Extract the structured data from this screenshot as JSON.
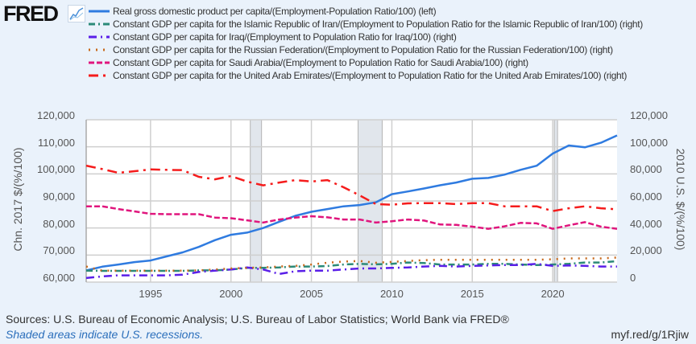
{
  "logo": {
    "text": "FRED"
  },
  "footer": {
    "sources": "Sources: U.S. Bureau of Economic Analysis; U.S. Bureau of Labor Statistics; World Bank via FRED®",
    "recession_note": "Shaded areas indicate U.S. recessions.",
    "link": "myf.red/g/1Rjiw"
  },
  "chart_data": {
    "type": "line",
    "title": "",
    "xlabel": "",
    "ylabel_left": "Chn. 2017 $/(%/100)",
    "ylabel_right": "2010 U.S. $/(%/100)",
    "xlim": [
      1991,
      2024
    ],
    "ylim_left": [
      60000,
      120000
    ],
    "ylim_right": [
      0,
      120000
    ],
    "x_ticks": [
      "1995",
      "2000",
      "2005",
      "2010",
      "2015",
      "2020"
    ],
    "y_ticks_left": [
      "120,000",
      "110,000",
      "100,000",
      "90,000",
      "80,000",
      "70,000",
      "60,000"
    ],
    "y_ticks_right": [
      "120,000",
      "100,000",
      "80,000",
      "60,000",
      "40,000",
      "20,000",
      "0"
    ],
    "grid": true,
    "legend_placement": "top",
    "recessions": [
      [
        2001.2,
        2001.9
      ],
      [
        2007.9,
        2009.4
      ],
      [
        2020.1,
        2020.3
      ]
    ],
    "x": [
      1991,
      1992,
      1993,
      1994,
      1995,
      1996,
      1997,
      1998,
      1999,
      2000,
      2001,
      2002,
      2003,
      2004,
      2005,
      2006,
      2007,
      2008,
      2009,
      2010,
      2011,
      2012,
      2013,
      2014,
      2015,
      2016,
      2017,
      2018,
      2019,
      2020,
      2021,
      2022,
      2023,
      2024
    ],
    "series": [
      {
        "name": "Real gross domestic product per capita/(Employment-Population Ratio/100) (left)",
        "axis": "left",
        "color": "#2f7be0",
        "dash": "",
        "values": [
          64300,
          65700,
          66500,
          67400,
          68000,
          69500,
          71000,
          73000,
          75500,
          77500,
          78300,
          80000,
          82300,
          84500,
          86000,
          87000,
          88000,
          88500,
          89500,
          92500,
          93500,
          94600,
          95800,
          96800,
          98200,
          98500,
          99700,
          101500,
          103000,
          107500,
          110500,
          109800,
          111500,
          114200
        ]
      },
      {
        "name": "Constant GDP per capita for the Islamic Republic of Iran/(Employment to Population Ratio for the Islamic Republic of Iran/100) (right)",
        "axis": "right",
        "color": "#2b8a78",
        "dash": "8,4,2,4",
        "values": [
          8500,
          8300,
          8300,
          8300,
          8300,
          8300,
          8300,
          8700,
          8700,
          9300,
          10500,
          10500,
          10900,
          11500,
          11500,
          11900,
          13000,
          13500,
          13100,
          13500,
          14500,
          14100,
          13000,
          13000,
          13000,
          13500,
          13500,
          13000,
          12600,
          13000,
          13500,
          14500,
          14500,
          15500
        ]
      },
      {
        "name": "Constant GDP per capita for Iraq/(Employment to Population Ratio for Iraq/100) (right)",
        "axis": "right",
        "color": "#5a1fe8",
        "dash": "10,5,2,5",
        "values": [
          3000,
          4200,
          5000,
          5000,
          5000,
          5000,
          5500,
          7500,
          8500,
          9300,
          10800,
          9300,
          6000,
          8000,
          8500,
          8500,
          9300,
          10100,
          10100,
          10500,
          10800,
          11500,
          12000,
          11500,
          12000,
          12300,
          12600,
          12600,
          13500,
          12000,
          12300,
          12000,
          11500,
          11500
        ]
      },
      {
        "name": "Constant GDP per capita for the Russian Federation/(Employment to Population Ratio for the Russian Federation/100) (right)",
        "axis": "right",
        "color": "#c8691c",
        "dash": "2,7",
        "values": [
          11500,
          8500,
          8500,
          8500,
          8500,
          8500,
          8500,
          8700,
          9300,
          10100,
          10500,
          10900,
          11500,
          12000,
          13000,
          14300,
          15200,
          15600,
          14300,
          15000,
          15600,
          16200,
          16500,
          16500,
          16500,
          16500,
          16500,
          16500,
          16500,
          16900,
          17500,
          17500,
          17500,
          18200
        ]
      },
      {
        "name": "Constant GDP per capita for Saudi Arabia/(Employment to Population Ratio for Saudi Arabia/100) (right)",
        "axis": "right",
        "color": "#e0157d",
        "dash": "7,3",
        "values": [
          56000,
          56000,
          54000,
          52300,
          50500,
          50200,
          50200,
          50200,
          47700,
          47200,
          45700,
          44000,
          46300,
          47700,
          48700,
          47900,
          46300,
          46300,
          44000,
          45000,
          46300,
          45500,
          42600,
          42300,
          41000,
          39400,
          41200,
          43800,
          43400,
          39400,
          42000,
          44300,
          41000,
          39400
        ]
      },
      {
        "name": "Constant GDP per capita for the United Arab Emirates/(Employment to Population Ratio for the United Arab Emirates/100) (right)",
        "axis": "right",
        "color": "#f51c1c",
        "dash": "12,6,3,6",
        "values": [
          86100,
          83500,
          80800,
          82000,
          83300,
          83000,
          82750,
          77800,
          76000,
          78400,
          74300,
          71500,
          73600,
          75400,
          74400,
          75400,
          70100,
          64100,
          57700,
          57200,
          58200,
          58400,
          58400,
          57700,
          58400,
          58400,
          56000,
          56000,
          56000,
          52500,
          54600,
          56000,
          54600,
          53800
        ]
      }
    ]
  }
}
